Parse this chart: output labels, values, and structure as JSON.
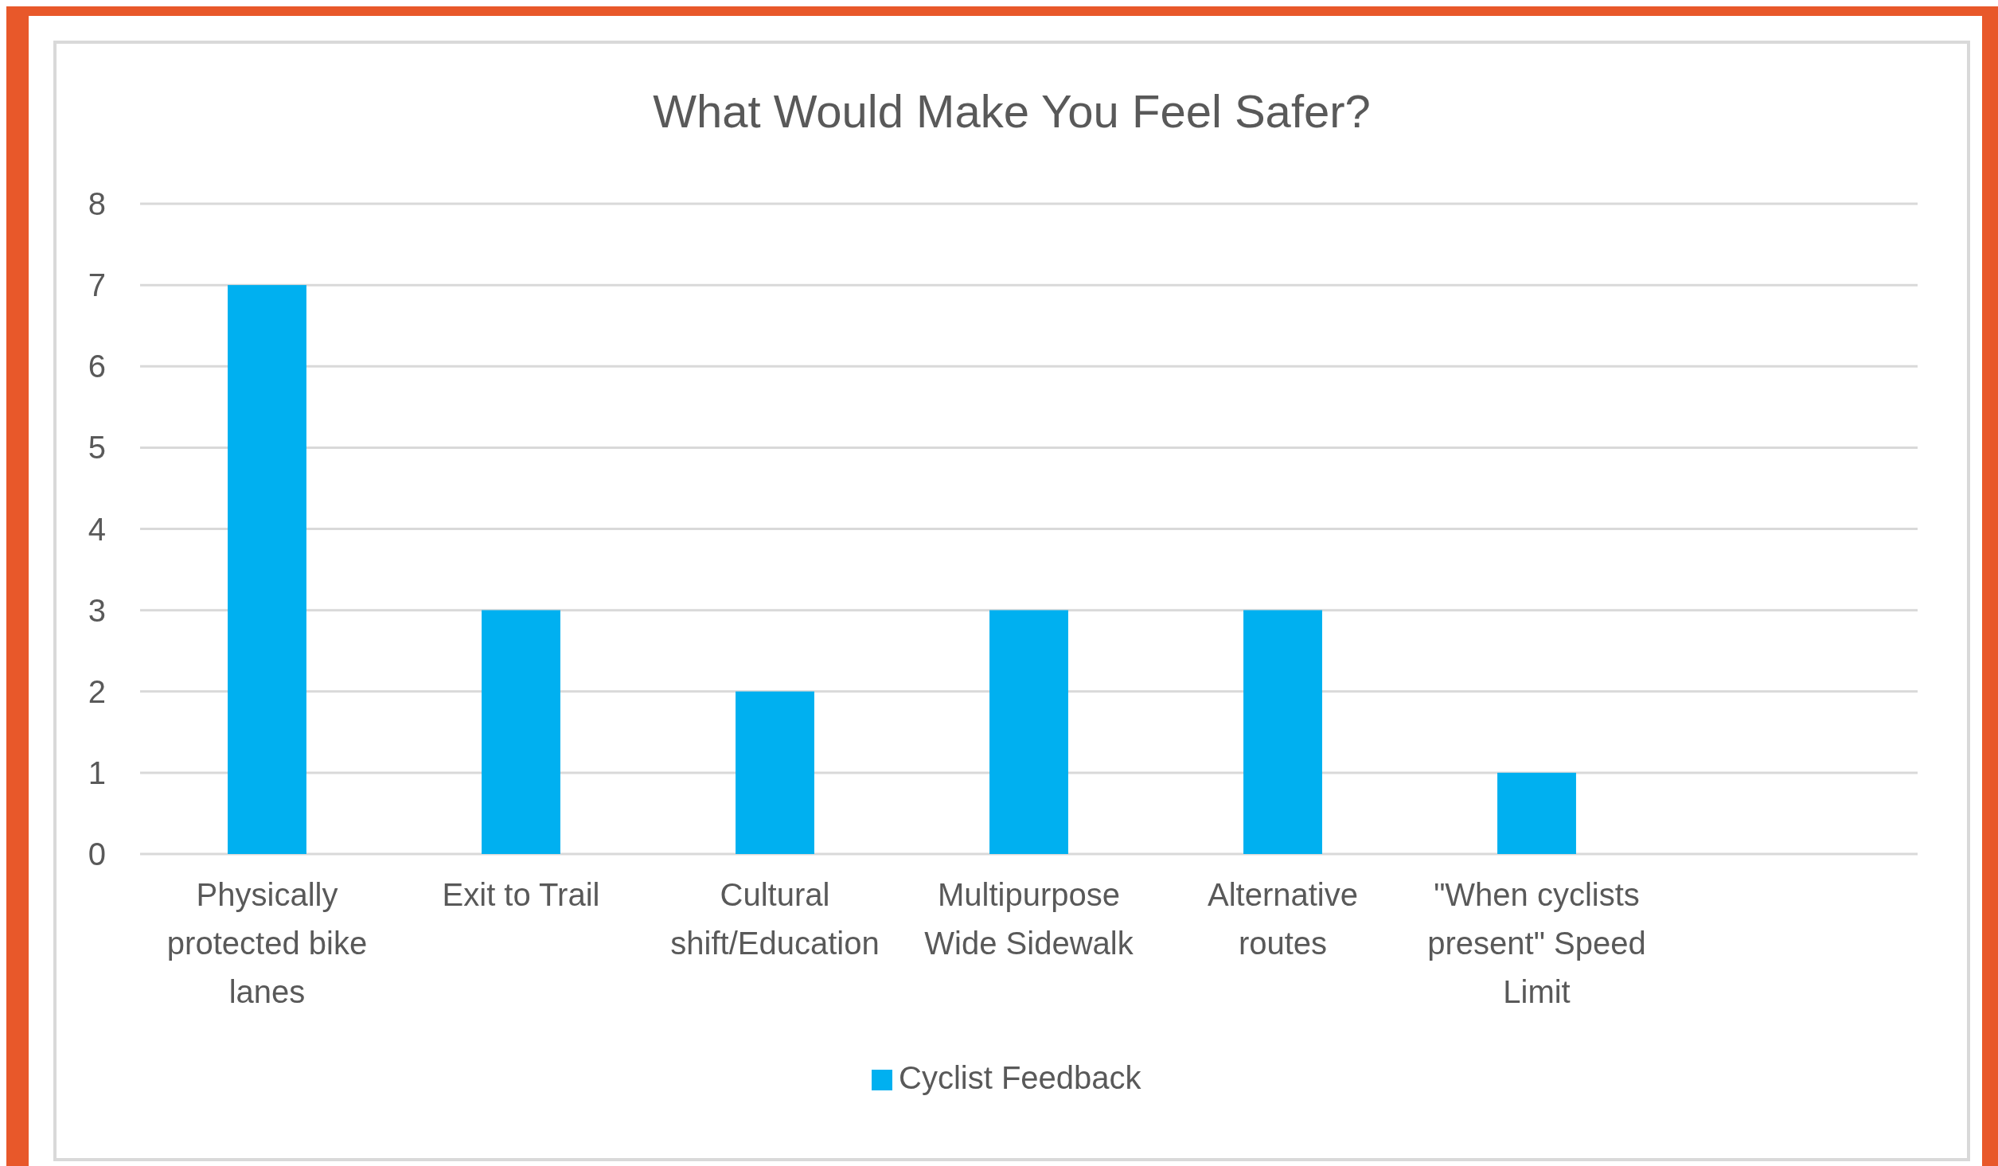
{
  "chart_data": {
    "type": "bar",
    "title": "What Would Make You Feel Safer?",
    "categories": [
      "Physically protected bike lanes",
      "Exit to Trail",
      "Cultural shift/Education",
      "Multipurpose Wide Sidewalk",
      "Alternative routes",
      "\"When cyclists present\" Speed Limit",
      null
    ],
    "series": [
      {
        "name": "Cyclist Feedback",
        "color": "#00b0f0",
        "values": [
          7,
          3,
          2,
          3,
          3,
          1,
          null
        ]
      }
    ],
    "ylim": [
      0,
      8
    ],
    "yticks": [
      0,
      1,
      2,
      3,
      4,
      5,
      6,
      7,
      8
    ],
    "grid": "y",
    "legend": "bottom"
  }
}
